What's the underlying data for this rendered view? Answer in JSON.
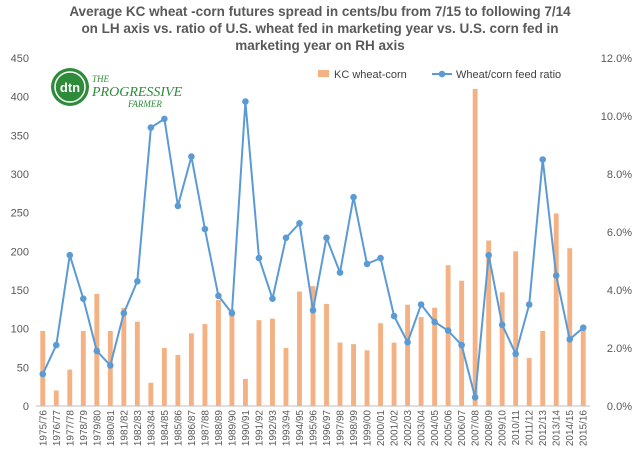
{
  "chart_data": {
    "type": "bar+line",
    "title_lines": [
      "Average KC wheat -corn futures spread in cents/bu from 7/15 to following 7/14",
      "on LH axis vs. ratio of U.S. wheat fed in marketing year vs. U.S. corn fed in",
      "marketing year on RH axis"
    ],
    "categories": [
      "1975/76",
      "1976/77",
      "1977/78",
      "1978/79",
      "1979/80",
      "1980/81",
      "1981/82",
      "1982/83",
      "1983/84",
      "1984/85",
      "1985/86",
      "1986/87",
      "1987/88",
      "1988/89",
      "1989/90",
      "1990/91",
      "1991/92",
      "1992/93",
      "1993/94",
      "1994/95",
      "1995/96",
      "1996/97",
      "1997/98",
      "1998/99",
      "1999/00",
      "2000/01",
      "2001/02",
      "2002/03",
      "2003/04",
      "2004/05",
      "2005/06",
      "2006/07",
      "2007/08",
      "2008/09",
      "2009/10",
      "2010/11",
      "2011/12",
      "2012/13",
      "2013/14",
      "2014/15",
      "2015/16"
    ],
    "left_axis": {
      "ylim": [
        0,
        450
      ],
      "ticks": [
        "0",
        "50",
        "100",
        "150",
        "200",
        "250",
        "300",
        "350",
        "400",
        "450"
      ]
    },
    "right_axis": {
      "ylim": [
        0,
        12
      ],
      "ticks": [
        "0.0%",
        "2.0%",
        "4.0%",
        "6.0%",
        "8.0%",
        "10.0%",
        "12.0%"
      ]
    },
    "series": [
      {
        "name": "KC wheat-corn",
        "kind": "bar",
        "axis": "left",
        "color": "#f4b183",
        "values": [
          97,
          20,
          47,
          97,
          145,
          97,
          127,
          109,
          30,
          75,
          66,
          94,
          106,
          137,
          125,
          35,
          111,
          113,
          75,
          148,
          155,
          132,
          82,
          80,
          72,
          107,
          82,
          131,
          115,
          127,
          182,
          162,
          410,
          214,
          147,
          200,
          62,
          97,
          249,
          204,
          101
        ]
      },
      {
        "name": "Wheat/corn feed ratio",
        "kind": "line",
        "axis": "right",
        "color": "#5b9bd5",
        "values": [
          1.1,
          2.1,
          5.2,
          3.7,
          1.9,
          1.4,
          3.2,
          4.3,
          9.6,
          9.9,
          6.9,
          8.6,
          6.1,
          3.8,
          3.2,
          10.5,
          5.1,
          3.7,
          5.8,
          6.3,
          3.3,
          5.8,
          4.6,
          7.2,
          4.9,
          5.1,
          3.1,
          2.2,
          3.5,
          2.9,
          2.6,
          2.1,
          0.3,
          5.2,
          2.8,
          1.8,
          3.5,
          8.5,
          4.5,
          2.3,
          2.7
        ]
      }
    ],
    "legend": {
      "position": "top-right"
    }
  },
  "logo": {
    "mark": "dtn",
    "name": "THE PROGRESSIVE FARMER"
  },
  "colors": {
    "bar": "#f4b183",
    "line": "#5b9bd5",
    "text": "#595959",
    "axis": "#bfbfbf",
    "logo_green": "#2e8b3a"
  }
}
